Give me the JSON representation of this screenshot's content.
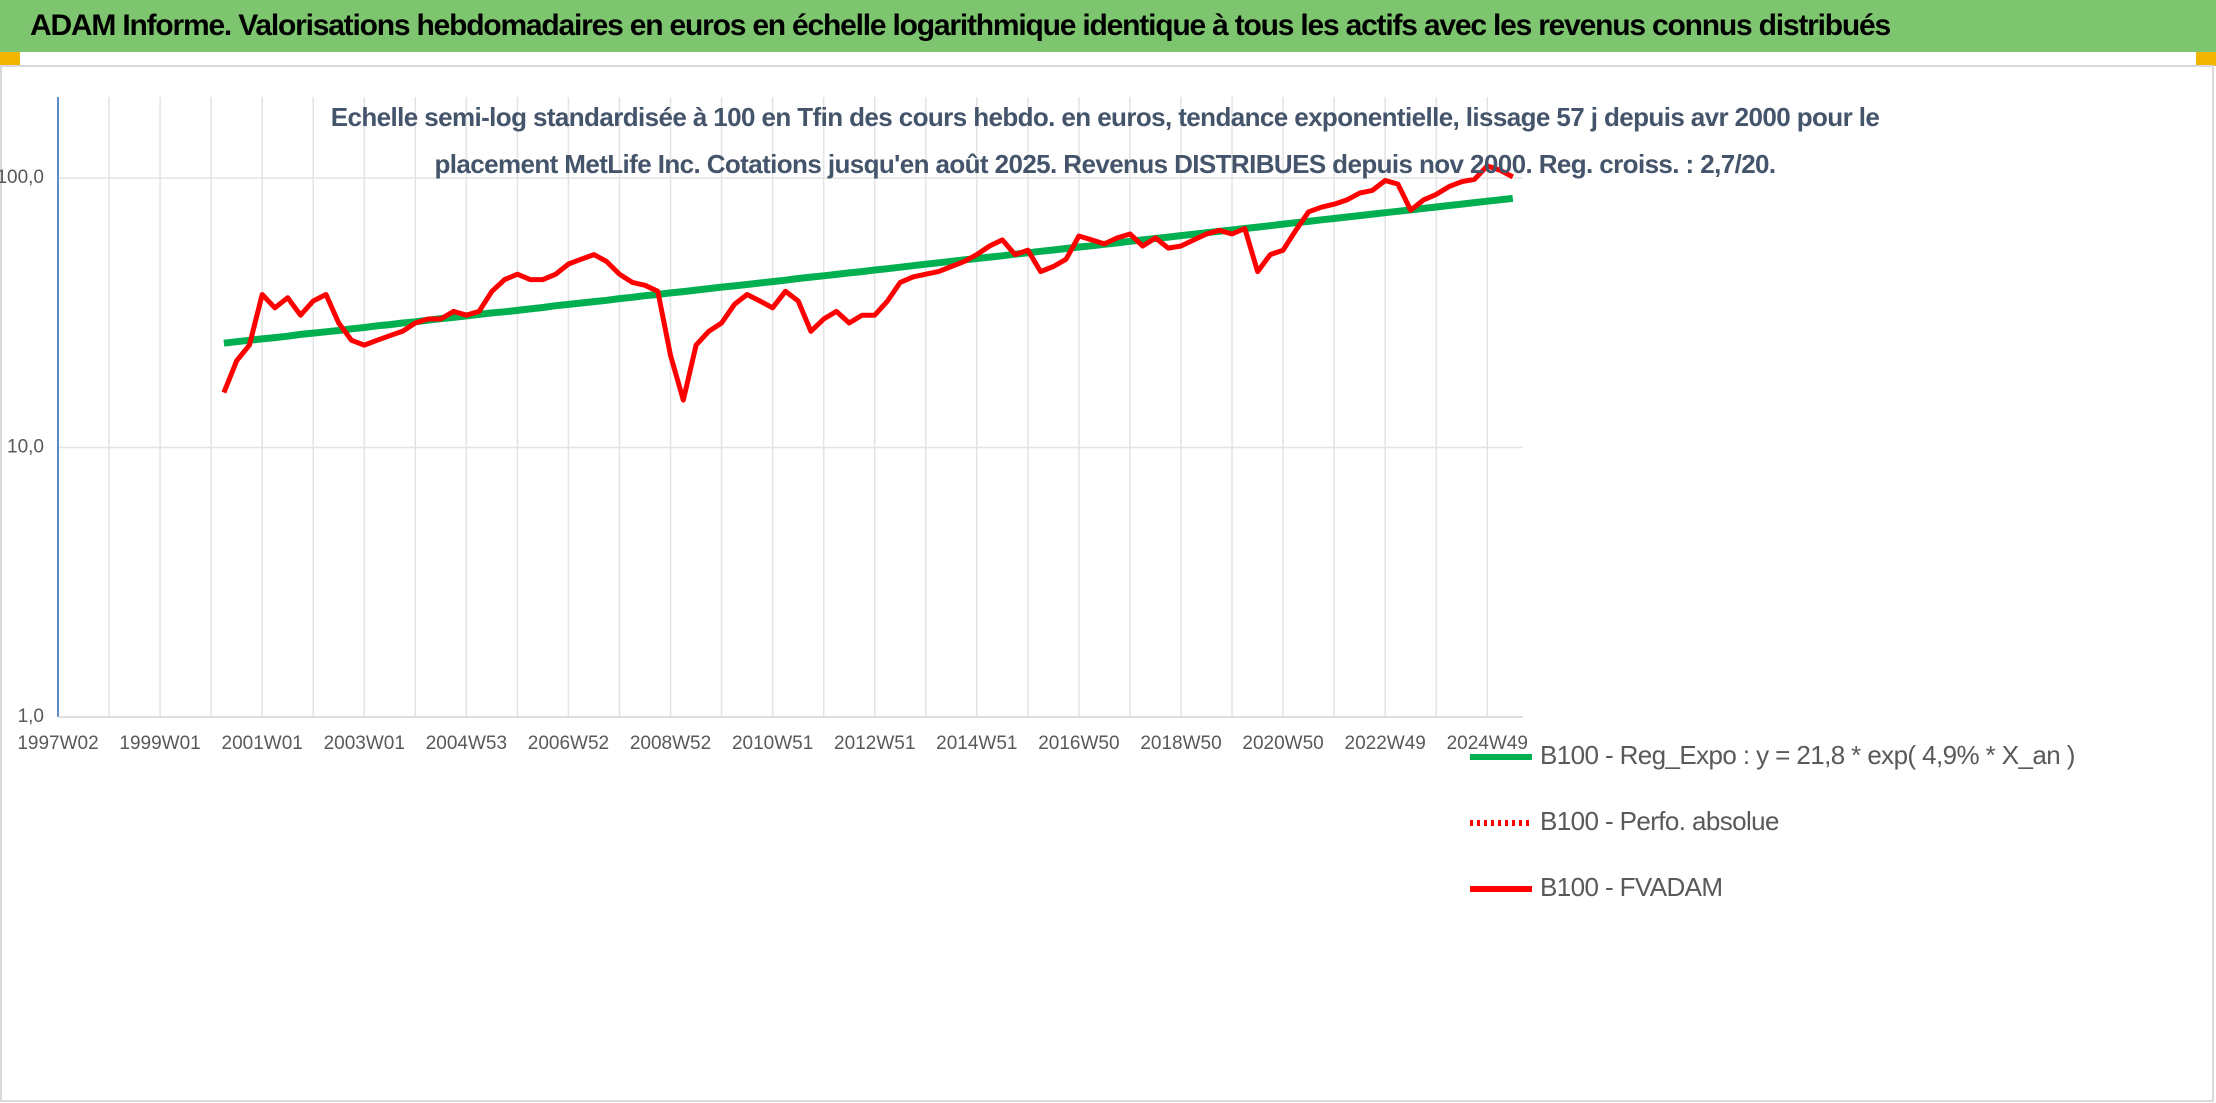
{
  "header": {
    "title": "ADAM Informe. Valorisations hebdomadaires en euros en échelle logarithmique identique à tous les actifs avec les revenus connus distribués"
  },
  "chart_data": {
    "type": "line",
    "title": "Echelle semi-log standardisée à 100 en Tfin des cours hebdo. en euros, tendance exponentielle, lissage 57 j depuis avr 2000 pour le placement MetLife Inc. Cotations jusqu'en août 2025. Revenus DISTRIBUES depuis nov 2000. Reg. croiss. : 2,7/20.",
    "log_scale": true,
    "grid": true,
    "legend": "right",
    "ylim": [
      1,
      200
    ],
    "yticks": [
      {
        "value": 1,
        "label": "1,0"
      },
      {
        "value": 10,
        "label": "10,0"
      },
      {
        "value": 100,
        "label": "100,0"
      }
    ],
    "categories": [
      "1997W02",
      null,
      null,
      null,
      null,
      null,
      null,
      null,
      "1999W01",
      null,
      null,
      null,
      null,
      null,
      null,
      null,
      "2001W01",
      null,
      null,
      null,
      null,
      null,
      null,
      null,
      "2003W01",
      null,
      null,
      null,
      null,
      null,
      null,
      null,
      "2004W53",
      null,
      null,
      null,
      null,
      null,
      null,
      null,
      "2006W52",
      null,
      null,
      null,
      null,
      null,
      null,
      null,
      "2008W52",
      null,
      null,
      null,
      null,
      null,
      null,
      null,
      "2010W51",
      null,
      null,
      null,
      null,
      null,
      null,
      null,
      "2012W51",
      null,
      null,
      null,
      null,
      null,
      null,
      null,
      "2014W51",
      null,
      null,
      null,
      null,
      null,
      null,
      null,
      "2016W50",
      null,
      null,
      null,
      null,
      null,
      null,
      null,
      "2018W50",
      null,
      null,
      null,
      null,
      null,
      null,
      null,
      "2020W50",
      null,
      null,
      null,
      null,
      null,
      null,
      null,
      "2022W49",
      null,
      null,
      null,
      null,
      null,
      null,
      null,
      "2024W49",
      null,
      null
    ],
    "series": [
      {
        "name": "B100 - Reg_Expo : y = 21,8 * exp( 4,9% *  X_an )",
        "color": "#00b050",
        "style": "solid",
        "values": [
          null,
          null,
          null,
          null,
          null,
          null,
          null,
          null,
          null,
          null,
          null,
          null,
          null,
          24.4,
          24.7,
          25.0,
          25.3,
          25.6,
          25.9,
          26.3,
          26.6,
          26.9,
          27.2,
          27.6,
          27.9,
          28.3,
          28.6,
          29.0,
          29.3,
          29.7,
          30.1,
          30.4,
          30.8,
          31.2,
          31.6,
          31.9,
          32.3,
          32.7,
          33.1,
          33.6,
          34.0,
          34.4,
          34.8,
          35.2,
          35.7,
          36.1,
          36.6,
          37.0,
          37.5,
          37.9,
          38.4,
          38.9,
          39.4,
          39.8,
          40.3,
          40.8,
          41.3,
          41.8,
          42.4,
          42.9,
          43.4,
          43.9,
          44.5,
          45.0,
          45.6,
          46.1,
          46.7,
          47.3,
          47.9,
          48.5,
          49.1,
          49.7,
          50.3,
          50.9,
          51.5,
          52.2,
          52.8,
          53.5,
          54.1,
          54.8,
          55.5,
          56.1,
          56.8,
          57.5,
          58.3,
          59.0,
          59.7,
          60.4,
          61.2,
          61.9,
          62.7,
          63.5,
          64.2,
          65.0,
          65.8,
          66.6,
          67.5,
          68.3,
          69.1,
          70.0,
          70.8,
          71.7,
          72.6,
          73.5,
          74.4,
          75.3,
          76.2,
          77.2,
          78.1,
          79.1,
          80.1,
          81.1,
          82.1,
          83.1,
          84.1
        ]
      },
      {
        "name": "B100 - Perfo. absolue",
        "color": "#ff0000",
        "style": "dotted",
        "values": [
          null,
          null,
          null,
          null,
          null,
          null,
          null,
          null,
          null,
          null,
          null,
          null,
          null,
          null,
          null,
          null,
          null,
          null,
          null,
          null,
          null,
          null,
          null,
          null,
          null,
          null,
          null,
          null,
          null,
          null,
          null,
          null,
          null,
          null,
          null,
          null,
          null,
          null,
          null,
          null,
          null,
          null,
          null,
          null,
          null,
          null,
          null,
          null,
          null,
          null,
          null,
          null,
          null,
          null,
          null,
          null,
          null,
          null,
          null,
          null,
          null,
          null,
          null,
          null,
          null,
          null,
          null,
          null,
          null,
          null,
          null,
          null,
          null,
          null,
          null,
          null,
          null,
          null,
          null,
          null,
          null,
          null,
          null,
          null,
          null,
          null,
          null,
          null,
          null,
          null,
          null,
          null,
          null,
          null,
          null,
          null,
          null,
          null,
          null,
          null,
          null,
          null,
          null,
          null,
          null,
          null,
          null,
          null,
          null,
          null,
          null,
          null,
          null,
          null,
          null
        ]
      },
      {
        "name": "B100 - FVADAM",
        "color": "#ff0000",
        "style": "solid",
        "values": [
          null,
          null,
          null,
          null,
          null,
          null,
          null,
          null,
          null,
          null,
          null,
          null,
          null,
          16,
          21,
          24,
          37,
          33,
          36,
          31,
          35,
          37,
          29,
          25,
          24,
          25,
          26,
          27,
          29,
          30,
          30,
          32,
          31,
          32,
          38,
          42,
          44,
          42,
          42,
          44,
          48,
          50,
          52,
          49,
          44,
          41,
          40,
          38,
          22,
          15,
          24,
          27,
          29,
          34,
          37,
          35,
          33,
          38,
          35,
          27,
          30,
          32,
          29,
          31,
          31,
          35,
          41,
          43,
          44,
          45,
          47,
          49,
          52,
          56,
          59,
          52,
          54,
          45,
          47,
          50,
          61,
          59,
          57,
          60,
          62,
          56,
          60,
          55,
          56,
          59,
          62,
          64,
          62,
          65,
          45,
          52,
          54,
          64,
          75,
          78,
          80,
          83,
          88,
          90,
          98,
          95,
          76,
          83,
          87,
          93,
          97,
          99,
          111,
          107,
          101
        ]
      }
    ]
  }
}
